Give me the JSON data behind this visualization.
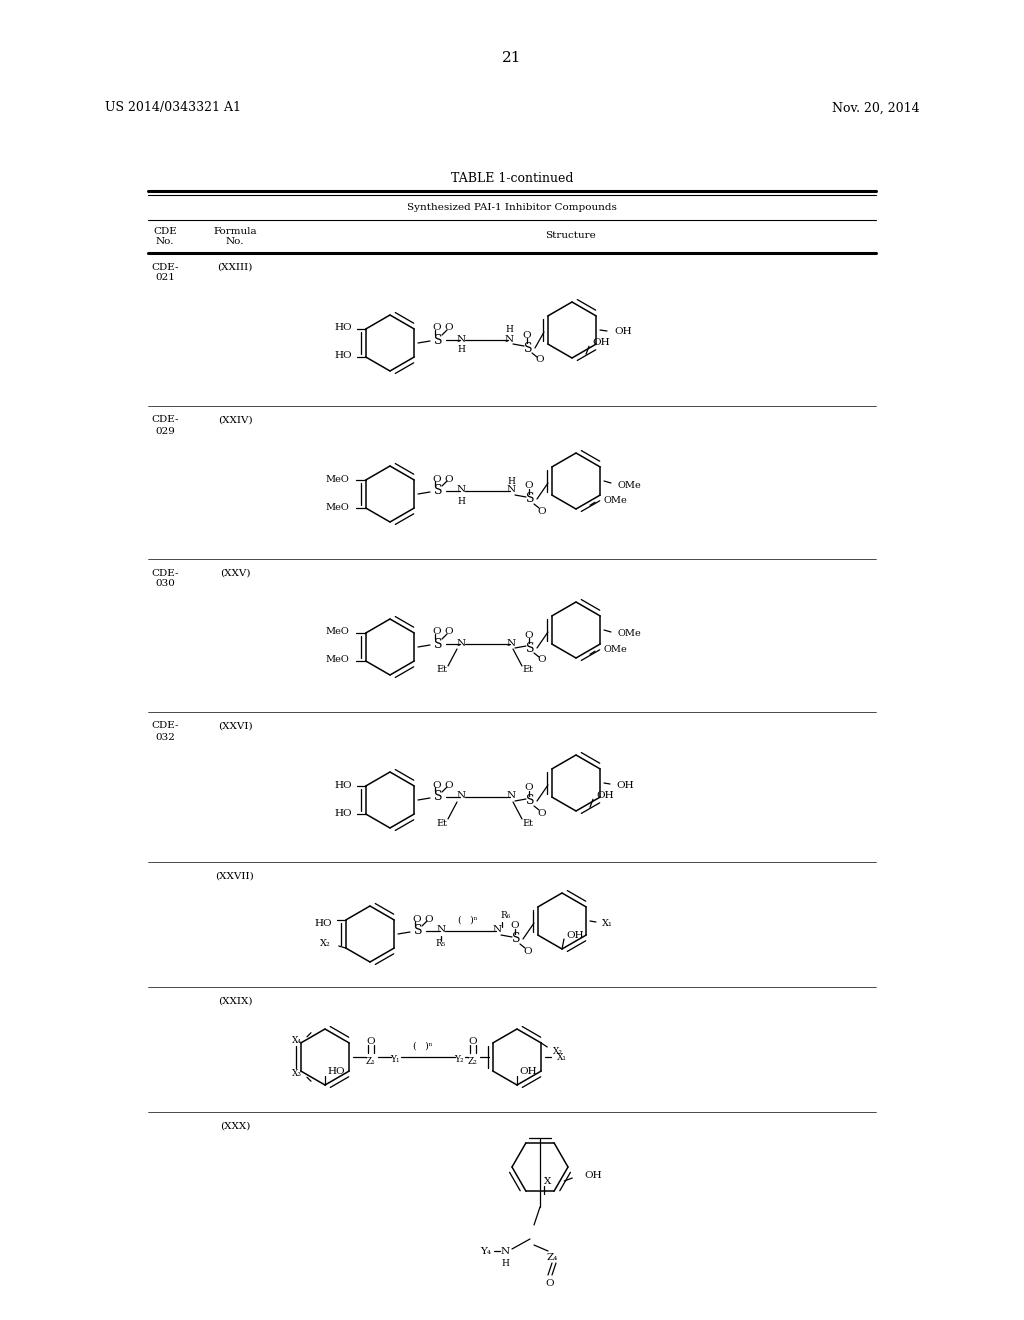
{
  "bg": "#ffffff",
  "header_left": "US 2014/0343321 A1",
  "header_right": "Nov. 20, 2014",
  "page_num": "21",
  "table_title": "TABLE 1-continued",
  "table_subtitle": "Synthesized PAI-1 Inhibitor Compounds",
  "rows": [
    {
      "cde": "CDE-\n021",
      "formula": "(XXIII)"
    },
    {
      "cde": "CDE-\n029",
      "formula": "(XXIV)"
    },
    {
      "cde": "CDE-\n030",
      "formula": "(XXV)"
    },
    {
      "cde": "CDE-\n032",
      "formula": "(XXVI)"
    },
    {
      "cde": "",
      "formula": "(XXVII)"
    },
    {
      "cde": "",
      "formula": "(XXIX)"
    },
    {
      "cde": "",
      "formula": "(XXX)"
    }
  ]
}
